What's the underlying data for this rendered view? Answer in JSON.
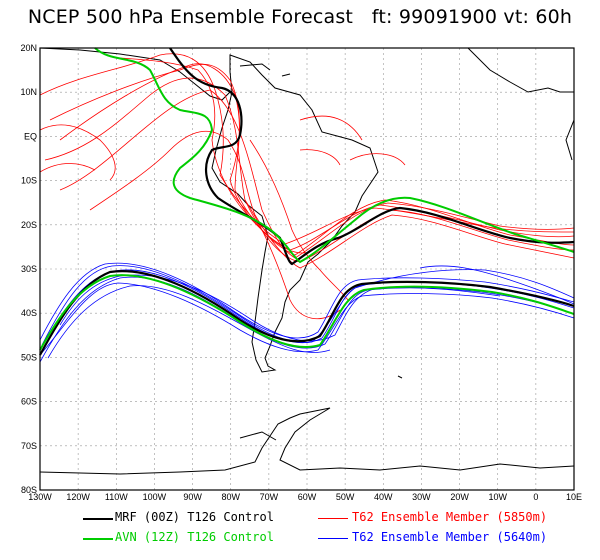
{
  "title": "NCEP 500 hPa Ensemble Forecast   ft: 99091900 vt: 60h",
  "lat_labels": [
    "20N",
    "10N",
    "EQ",
    "10S",
    "20S",
    "30S",
    "40S",
    "50S",
    "60S",
    "70S",
    "80S"
  ],
  "lon_labels": [
    "130W",
    "120W",
    "110W",
    "100W",
    "90W",
    "80W",
    "70W",
    "60W",
    "50W",
    "40W",
    "30W",
    "20W",
    "10W",
    "0",
    "10E"
  ],
  "legend": [
    {
      "label": "MRF (00Z) T126 Control",
      "color": "#000000"
    },
    {
      "label": "AVN (12Z) T126 Control",
      "color": "#00cc00"
    },
    {
      "label": "T62 Ensemble Member (5850m)",
      "color": "#ff0000"
    },
    {
      "label": "T62 Ensemble Member (5640m)",
      "color": "#0000ff"
    }
  ],
  "colors": {
    "mrf": "#000000",
    "avn": "#00cc00",
    "member_5850": "#ff0000",
    "member_5640": "#0000ff",
    "grid": "#888888"
  }
}
